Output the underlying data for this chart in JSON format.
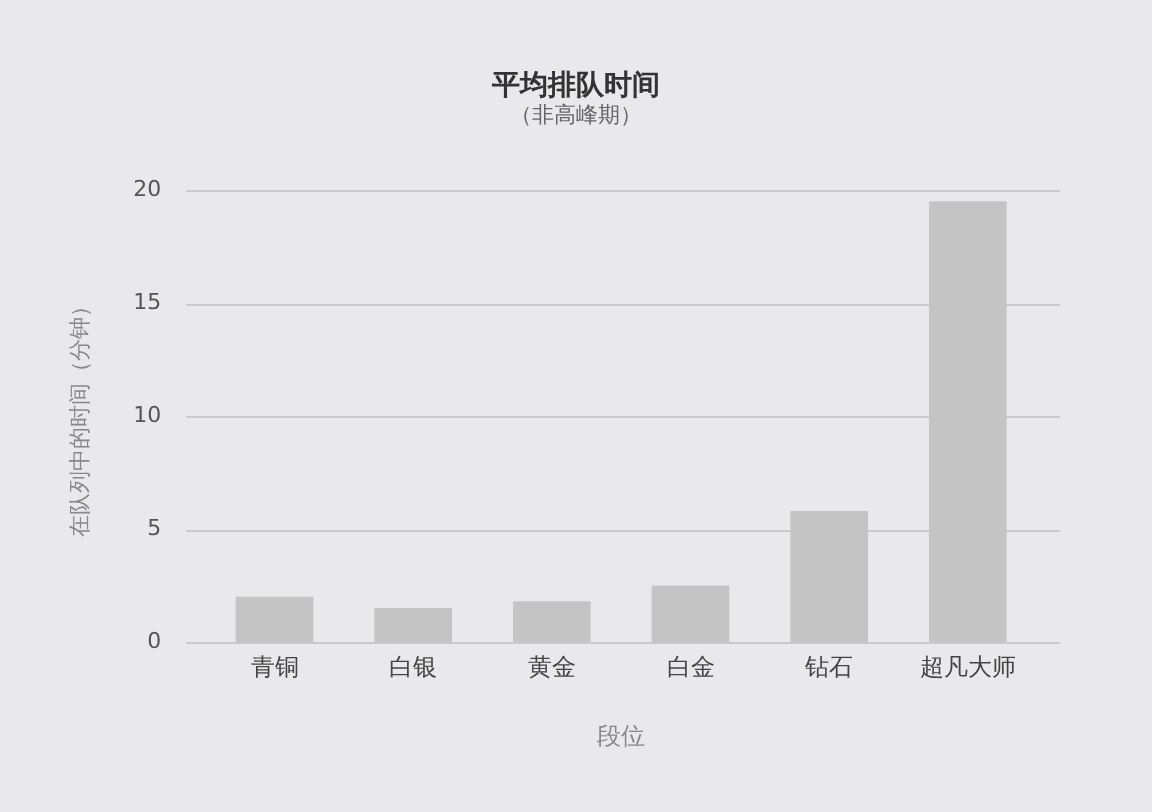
{
  "chart_data": {
    "type": "bar",
    "title": "平均排队时间",
    "subtitle": "（非高峰期）",
    "xlabel": "段位",
    "ylabel": "在队列中的时间（分钟）",
    "categories": [
      "青铜",
      "白银",
      "黄金",
      "白金",
      "钻石",
      "超凡大师"
    ],
    "values": [
      2,
      1.5,
      1.8,
      2.5,
      5.8,
      19.5
    ],
    "color": "#c4c4c4",
    "ylim": [
      0,
      20
    ],
    "yticks": [
      0,
      5,
      10,
      15,
      20
    ],
    "grid": "y"
  }
}
